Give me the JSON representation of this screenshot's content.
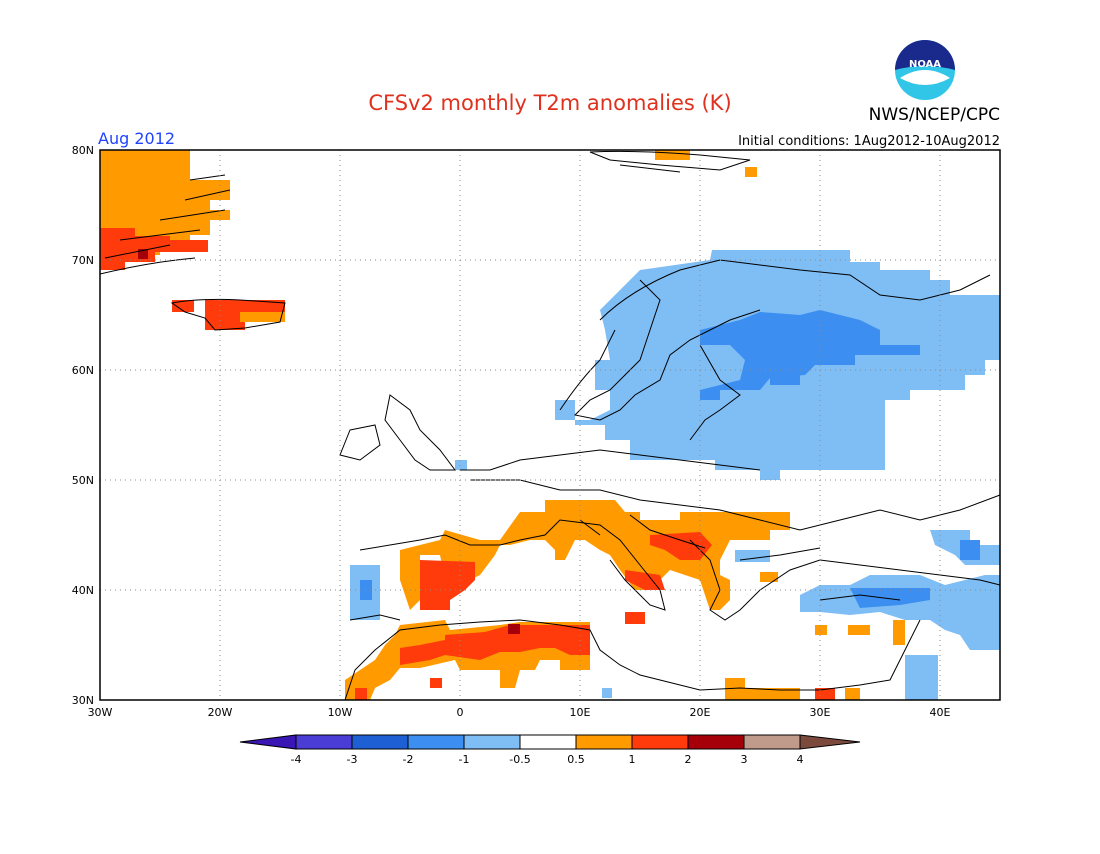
{
  "header": {
    "title": "CFSv2 monthly T2m anomalies (K)",
    "agency": "NWS/NCEP/CPC",
    "logo_text": "NOAA",
    "month_label": "Aug 2012",
    "initial_conditions": "Initial conditions:  1Aug2012-10Aug2012"
  },
  "colors": {
    "title": "#e0301e",
    "month": "#1f43ff",
    "coast": "#000000",
    "grid": "#8a8a8a"
  },
  "map": {
    "lat_ticks": [
      "80N",
      "70N",
      "60N",
      "50N",
      "40N",
      "30N"
    ],
    "lon_ticks": [
      "30W",
      "20W",
      "10W",
      "0",
      "10E",
      "20E",
      "30E",
      "40E"
    ]
  },
  "legend": {
    "colors": [
      "#3a16b4",
      "#4a3dd6",
      "#1e60d4",
      "#3c8ff0",
      "#7fbdf5",
      "#ffffff",
      "#ff9a00",
      "#ff3a0b",
      "#a5000a",
      "#c09b8c",
      "#7b4a3c"
    ],
    "labels": [
      "-4",
      "-3",
      "-2",
      "-1",
      "-0.5",
      "0.5",
      "1",
      "2",
      "3",
      "4"
    ]
  }
}
